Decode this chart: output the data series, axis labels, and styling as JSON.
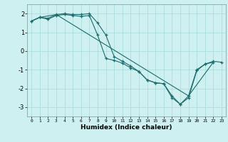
{
  "xlabel": "Humidex (Indice chaleur)",
  "bg_color": "#cff0f0",
  "grid_color": "#aadddd",
  "line_color": "#1a6b6b",
  "marker": "+",
  "xlim": [
    -0.5,
    23.5
  ],
  "ylim": [
    -3.5,
    2.5
  ],
  "yticks": [
    -3,
    -2,
    -1,
    0,
    1,
    2
  ],
  "xticks": [
    0,
    1,
    2,
    3,
    4,
    5,
    6,
    7,
    8,
    9,
    10,
    11,
    12,
    13,
    14,
    15,
    16,
    17,
    18,
    19,
    20,
    21,
    22,
    23
  ],
  "series1_x": [
    0,
    1,
    2,
    3,
    4,
    5,
    6,
    7,
    8,
    9,
    10,
    11,
    12,
    13,
    14,
    15,
    16,
    17,
    18,
    19,
    20,
    21,
    22,
    23
  ],
  "series1_y": [
    1.6,
    1.8,
    1.7,
    1.9,
    1.95,
    1.9,
    1.85,
    1.9,
    0.85,
    -0.4,
    -0.5,
    -0.65,
    -0.9,
    -1.1,
    -1.55,
    -1.7,
    -1.75,
    -2.5,
    -2.85,
    -2.4,
    -1.0,
    -0.7,
    -0.55,
    -0.6
  ],
  "series2_x": [
    0,
    1,
    2,
    3,
    4,
    5,
    6,
    7,
    8,
    9,
    10,
    11,
    12,
    13,
    14,
    15,
    16,
    17,
    18,
    19,
    20,
    21,
    22
  ],
  "series2_y": [
    1.6,
    1.8,
    1.75,
    1.95,
    2.0,
    1.95,
    1.95,
    2.0,
    1.5,
    0.85,
    -0.3,
    -0.55,
    -0.8,
    -1.1,
    -1.55,
    -1.7,
    -1.75,
    -2.4,
    -2.85,
    -2.5,
    -1.05,
    -0.7,
    -0.6
  ],
  "series3_x": [
    0,
    1,
    3,
    19,
    22
  ],
  "series3_y": [
    1.6,
    1.8,
    1.95,
    -2.4,
    -0.6
  ]
}
